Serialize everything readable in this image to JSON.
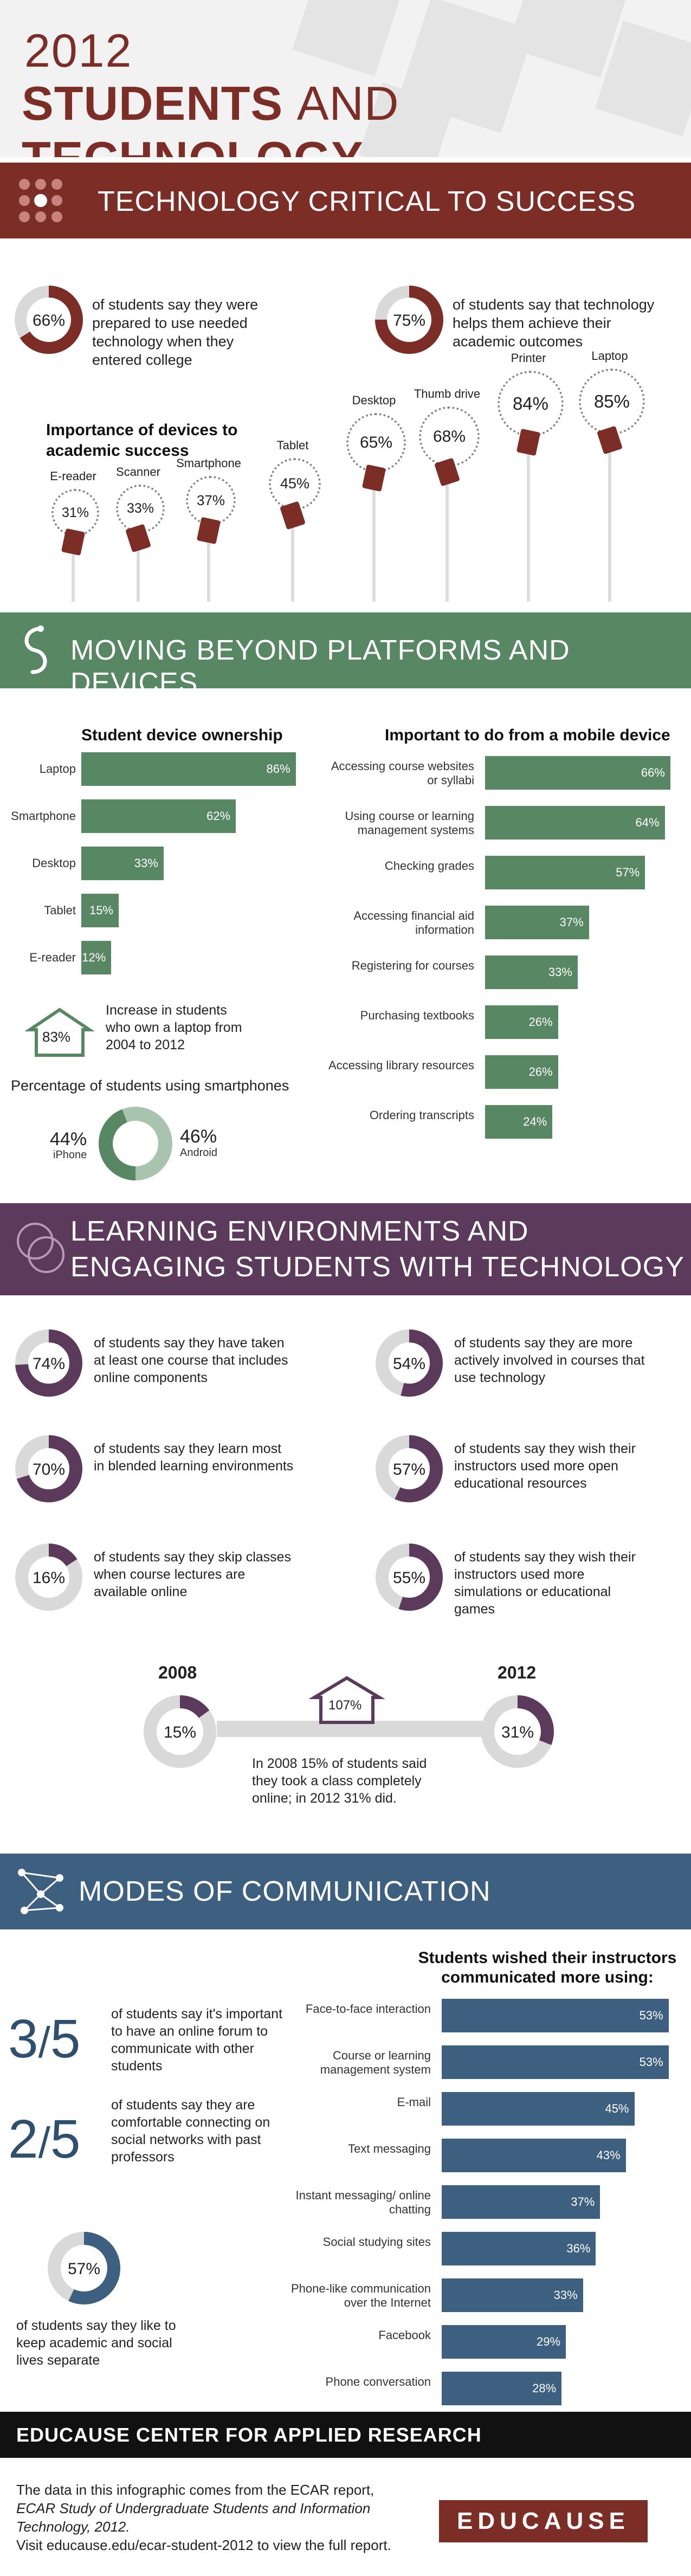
{
  "header": {
    "year": "2012",
    "title_bold_1": "STUDENTS",
    "title_thin": "AND",
    "title_bold_2": "TECHNOLOGY"
  },
  "sections": {
    "s1": "TECHNOLOGY CRITICAL TO SUCCESS",
    "s2": "MOVING BEYOND PLATFORMS AND DEVICES",
    "s3_line1": "LEARNING ENVIRONMENTS AND",
    "s3_line2": "ENGAGING STUDENTS WITH TECHNOLOGY",
    "s4": "MODES OF COMMUNICATION"
  },
  "success": {
    "stat1": {
      "value": "66%",
      "pct": 66,
      "text": "of students say they were prepared to use needed technology when they entered college"
    },
    "stat2": {
      "value": "75%",
      "pct": 75,
      "text": "of students say that technology helps them achieve their academic outcomes"
    },
    "devices_title": "Importance of devices to academic success",
    "devices": [
      {
        "label": "E-reader",
        "value": "31%"
      },
      {
        "label": "Scanner",
        "value": "33%"
      },
      {
        "label": "Smartphone",
        "value": "37%"
      },
      {
        "label": "Tablet",
        "value": "45%"
      },
      {
        "label": "Desktop",
        "value": "65%"
      },
      {
        "label": "Thumb drive",
        "value": "68%"
      },
      {
        "label": "Printer",
        "value": "84%"
      },
      {
        "label": "Laptop",
        "value": "85%"
      }
    ]
  },
  "ownership": {
    "title": "Student device ownership",
    "items": [
      {
        "label": "Laptop",
        "value": "86%",
        "pct": 86
      },
      {
        "label": "Smartphone",
        "value": "62%",
        "pct": 62
      },
      {
        "label": "Desktop",
        "value": "33%",
        "pct": 33
      },
      {
        "label": "Tablet",
        "value": "15%",
        "pct": 15
      },
      {
        "label": "E-reader",
        "value": "12%",
        "pct": 12
      }
    ],
    "increase_value": "83%",
    "increase_text": "Increase in students who own a laptop from 2004 to 2012",
    "smartphone_title": "Percentage of students using smartphones",
    "iphone_value": "44%",
    "iphone_label": "iPhone",
    "android_value": "46%",
    "android_label": "Android"
  },
  "mobile": {
    "title": "Important to do from a mobile device",
    "items": [
      {
        "label": "Accessing course websites or syllabi",
        "value": "66%",
        "pct": 66
      },
      {
        "label": "Using course or learning management systems",
        "value": "64%",
        "pct": 64
      },
      {
        "label": "Checking grades",
        "value": "57%",
        "pct": 57
      },
      {
        "label": "Accessing financial aid information",
        "value": "37%",
        "pct": 37
      },
      {
        "label": "Registering for courses",
        "value": "33%",
        "pct": 33
      },
      {
        "label": "Purchasing textbooks",
        "value": "26%",
        "pct": 26
      },
      {
        "label": "Accessing library resources",
        "value": "26%",
        "pct": 26
      },
      {
        "label": "Ordering transcripts",
        "value": "24%",
        "pct": 24
      }
    ]
  },
  "learning": {
    "stats": [
      {
        "value": "74%",
        "pct": 74,
        "text": "of students say they have taken at least one course that includes online components"
      },
      {
        "value": "54%",
        "pct": 54,
        "text": "of students say they are more actively involved in courses that use technology"
      },
      {
        "value": "70%",
        "pct": 70,
        "text": "of students say they learn most in blended learning environments"
      },
      {
        "value": "57%",
        "pct": 57,
        "text": "of students say they wish their instructors used more open educational resources"
      },
      {
        "value": "16%",
        "pct": 16,
        "text": "of students say they skip classes when course lectures are available online"
      },
      {
        "value": "55%",
        "pct": 55,
        "text": "of students say they wish their instructors used more simulations or educational games"
      }
    ],
    "year_a": "2008",
    "year_b": "2012",
    "val_a": "15%",
    "pct_a": 15,
    "val_b": "31%",
    "pct_b": 31,
    "growth": "107%",
    "growth_text": "In 2008 15% of students said they took a class completely online; in 2012 31% did."
  },
  "comm": {
    "frac1_num": "3",
    "frac1_den": "5",
    "frac1_text": "of students say it's important to have an online forum to communicate with other students",
    "frac2_num": "2",
    "frac2_den": "5",
    "frac2_text": "of students say they are comfortable connecting on social networks with past professors",
    "donut_value": "57%",
    "donut_pct": 57,
    "donut_text": "of students say they like to keep academic and social lives separate",
    "title": "Students wished their instructors communicated more using:",
    "items": [
      {
        "label": "Face-to-face interaction",
        "value": "53%",
        "pct": 53
      },
      {
        "label": "Course or learning management system",
        "value": "53%",
        "pct": 53
      },
      {
        "label": "E-mail",
        "value": "45%",
        "pct": 45
      },
      {
        "label": "Text messaging",
        "value": "43%",
        "pct": 43
      },
      {
        "label": "Instant messaging/ online chatting",
        "value": "37%",
        "pct": 37
      },
      {
        "label": "Social studying sites",
        "value": "36%",
        "pct": 36
      },
      {
        "label": "Phone-like communication over the Internet",
        "value": "33%",
        "pct": 33
      },
      {
        "label": "Facebook",
        "value": "29%",
        "pct": 29
      },
      {
        "label": "Phone conversation",
        "value": "28%",
        "pct": 28
      }
    ]
  },
  "footer": {
    "org": "EDUCAUSE CENTER FOR APPLIED RESEARCH",
    "src_1": "The data in this infographic comes from the ECAR report,",
    "src_2": "ECAR Study of Undergraduate Students and Information Technology, 2012.",
    "src_3": "Visit educause.edu/ecar-student-2012 to view the full report.",
    "logo": "EDUCAUSE"
  },
  "colors": {
    "maroon": "#7b2d26",
    "green": "#578763",
    "purple": "#5c3a5c",
    "blue": "#3d5f80",
    "gray": "#d9d9d9"
  }
}
